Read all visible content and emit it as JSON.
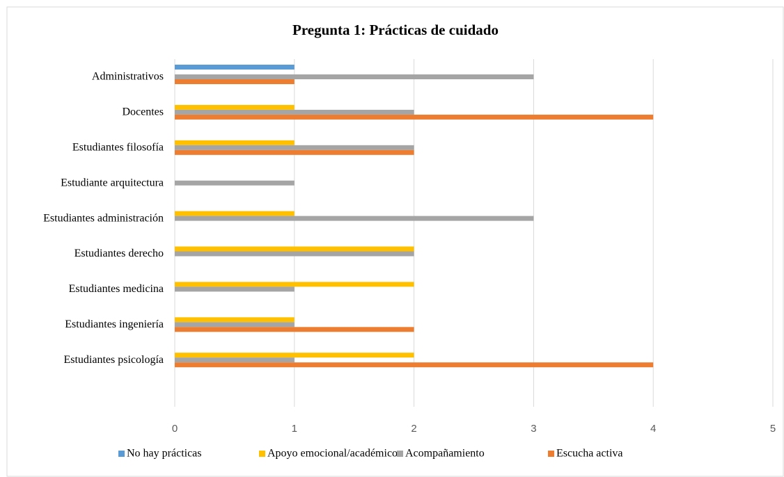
{
  "chart_data": {
    "type": "bar",
    "orientation": "horizontal",
    "title": "Pregunta 1: Prácticas de cuidado",
    "categories": [
      "Administrativos",
      "Docentes",
      "Estudiantes filosofía",
      "Estudiante arquitectura",
      "Estudiantes administración",
      "Estudiantes derecho",
      "Estudiantes medicina",
      "Estudiantes ingeniería",
      "Estudiantes psicología"
    ],
    "series": [
      {
        "name": "No hay prácticas",
        "color": "#5b9bd5",
        "values": [
          1,
          0,
          0,
          0,
          0,
          0,
          0,
          0,
          0
        ]
      },
      {
        "name": "Apoyo emocional/académico",
        "color": "#ffc000",
        "values": [
          0,
          1,
          1,
          0,
          1,
          2,
          2,
          1,
          2
        ]
      },
      {
        "name": "Acompañamiento",
        "color": "#a5a5a5",
        "values": [
          3,
          2,
          2,
          1,
          3,
          2,
          1,
          1,
          1
        ]
      },
      {
        "name": "Escucha activa",
        "color": "#ed7d31",
        "values": [
          1,
          4,
          2,
          0,
          0,
          0,
          0,
          2,
          4
        ]
      }
    ],
    "xlim": [
      0,
      5
    ],
    "xticks": [
      0,
      1,
      2,
      3,
      4,
      5
    ],
    "grid": true,
    "legend": "bottom"
  }
}
